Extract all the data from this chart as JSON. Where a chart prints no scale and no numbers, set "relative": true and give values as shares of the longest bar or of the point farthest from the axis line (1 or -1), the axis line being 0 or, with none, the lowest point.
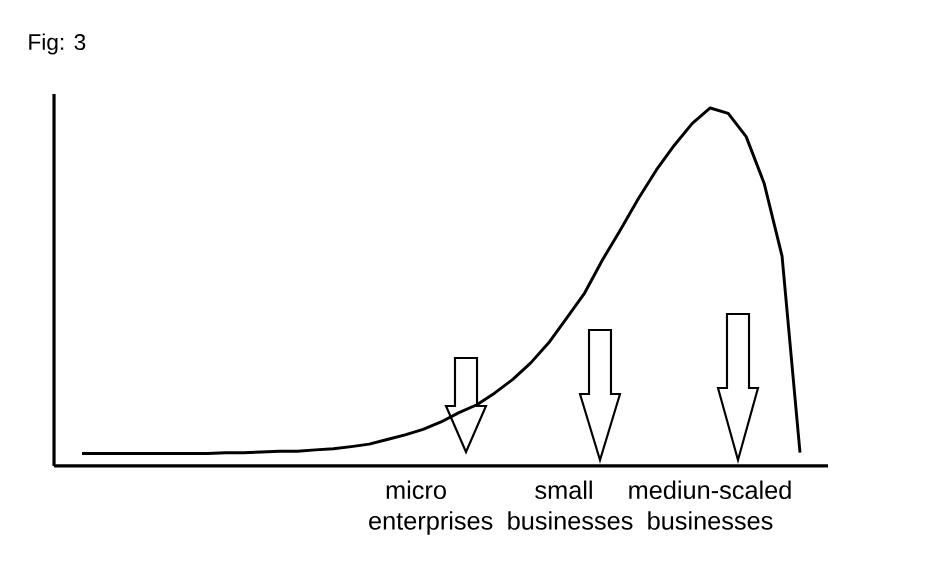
{
  "chart_data": {
    "type": "line",
    "relative": true,
    "title": "Fig: 3",
    "categories": [
      null,
      null,
      null,
      null,
      null,
      null,
      null,
      null,
      null,
      null,
      null,
      null,
      null,
      null,
      null,
      null,
      null,
      null,
      null,
      null,
      null,
      null,
      null,
      null,
      null,
      null,
      null,
      null,
      null,
      null,
      null,
      null,
      null,
      null,
      null,
      null,
      null,
      null,
      null,
      null,
      null
    ],
    "series": [
      {
        "color": "#000000",
        "values": [
          0.035,
          0.035,
          0.035,
          0.035,
          0.035,
          0.035,
          0.035,
          0.035,
          0.037,
          0.037,
          0.039,
          0.041,
          0.041,
          0.045,
          0.048,
          0.054,
          0.061,
          0.074,
          0.087,
          0.102,
          0.123,
          0.149,
          0.171,
          0.204,
          0.242,
          0.288,
          0.344,
          0.413,
          0.483,
          0.576,
          0.66,
          0.747,
          0.827,
          0.896,
          0.957,
          1,
          0.985,
          0.92,
          0.79,
          0.586,
          0.037
        ]
      }
    ],
    "annotations": [
      "micro enterprises",
      "small businesses",
      "mediun-scaled businesses"
    ]
  }
}
